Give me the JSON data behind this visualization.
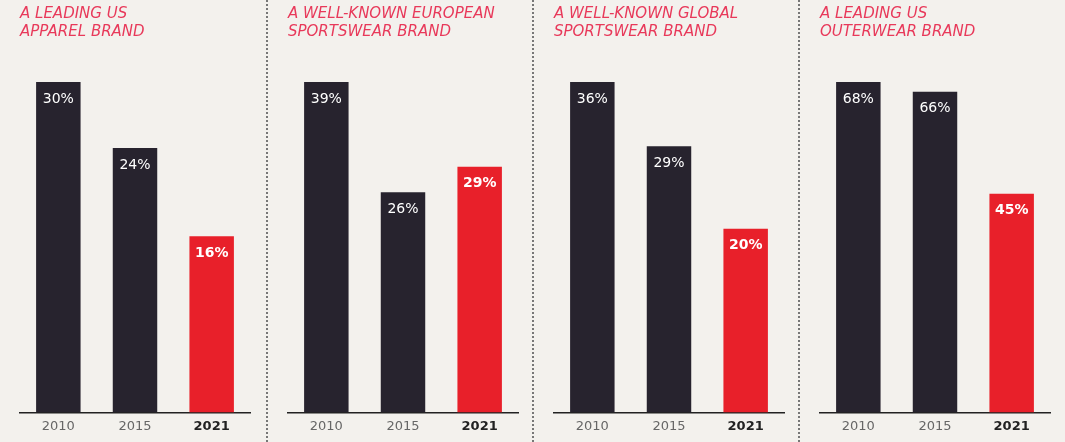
{
  "chart_data": [
    {
      "type": "bar",
      "title": "A LEADING US\nAPPAREL BRAND",
      "categories": [
        "2010",
        "2015",
        "2021"
      ],
      "values": [
        30,
        24,
        16
      ],
      "value_labels": [
        "30%",
        "24%",
        "16%"
      ],
      "colors": [
        "#27232e",
        "#27232e",
        "#e8202a"
      ]
    },
    {
      "type": "bar",
      "title": "A WELL-KNOWN EUROPEAN\nSPORTSWEAR BRAND",
      "categories": [
        "2010",
        "2015",
        "2021"
      ],
      "values": [
        39,
        26,
        29
      ],
      "value_labels": [
        "39%",
        "26%",
        "29%"
      ],
      "colors": [
        "#27232e",
        "#27232e",
        "#e8202a"
      ]
    },
    {
      "type": "bar",
      "title": "A WELL-KNOWN GLOBAL\nSPORTSWEAR BRAND",
      "categories": [
        "2010",
        "2015",
        "2021"
      ],
      "values": [
        36,
        29,
        20
      ],
      "value_labels": [
        "36%",
        "29%",
        "20%"
      ],
      "colors": [
        "#27232e",
        "#27232e",
        "#e8202a"
      ]
    },
    {
      "type": "bar",
      "title": "A LEADING US\nOUTERWEAR BRAND",
      "categories": [
        "2010",
        "2015",
        "2021"
      ],
      "values": [
        68,
        66,
        45
      ],
      "value_labels": [
        "68%",
        "66%",
        "45%"
      ],
      "colors": [
        "#27232e",
        "#27232e",
        "#e8202a"
      ]
    }
  ]
}
